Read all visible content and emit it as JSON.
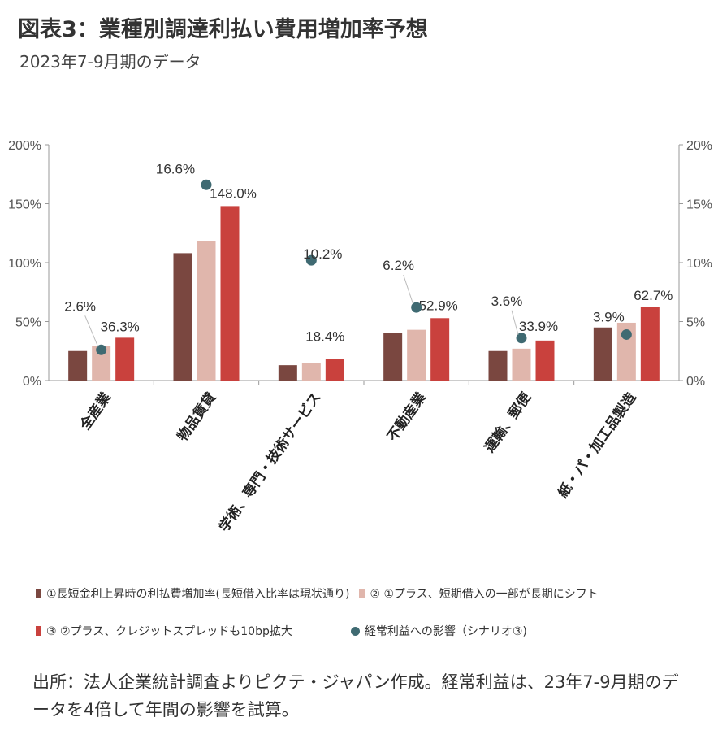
{
  "header": {
    "title": "図表3：業種別調達利払い費用増加率予想",
    "subtitle": "2023年7-9月期のデータ"
  },
  "colors": {
    "s1": "#7a4740",
    "s2": "#e0b6ac",
    "s3": "#c9413d",
    "s4": "#3f6a72",
    "axis": "#9a9a9a",
    "text": "#333333"
  },
  "chart_data": {
    "type": "bar",
    "categories": [
      "全産業",
      "物品賃貸",
      "学術、専門・技術サービス",
      "不動産業",
      "運輸、郵便",
      "紙・パ・加工品製造"
    ],
    "ylim_left": [
      0,
      200
    ],
    "ylim_right": [
      0,
      20
    ],
    "yticks_left": [
      "0%",
      "50%",
      "100%",
      "150%",
      "200%"
    ],
    "yticks_right": [
      "0%",
      "5%",
      "10%",
      "15%",
      "20%"
    ],
    "series": [
      {
        "name": "①長短金利上昇時の利払費増加率(長短借入比率は現状通り)",
        "axis": "left",
        "values": [
          25,
          108,
          13,
          40,
          25,
          45
        ]
      },
      {
        "name": "② ①プラス、短期借入の一部が長期にシフト",
        "axis": "left",
        "values": [
          29,
          118,
          15,
          43,
          27,
          49
        ]
      },
      {
        "name": "③ ②プラス、クレジットスプレッドも10bp拡大",
        "axis": "left",
        "values": [
          36.3,
          148.0,
          18.4,
          52.9,
          33.9,
          62.7
        ]
      },
      {
        "name": "経常利益への影響（シナリオ③)",
        "axis": "right",
        "values": [
          2.6,
          16.6,
          10.2,
          6.2,
          3.6,
          3.9
        ]
      }
    ],
    "data_labels_s3": [
      "36.3%",
      "148.0%",
      "18.4%",
      "52.9%",
      "33.9%",
      "62.7%"
    ],
    "data_labels_s4": [
      "2.6%",
      "16.6%",
      "10.2%",
      "6.2%",
      "3.6%",
      "3.9%"
    ]
  },
  "source_note": "出所：法人企業統計調査よりピクテ・ジャパン作成。経常利益は、23年7-9月期のデータを4倍して年間の影響を試算。"
}
